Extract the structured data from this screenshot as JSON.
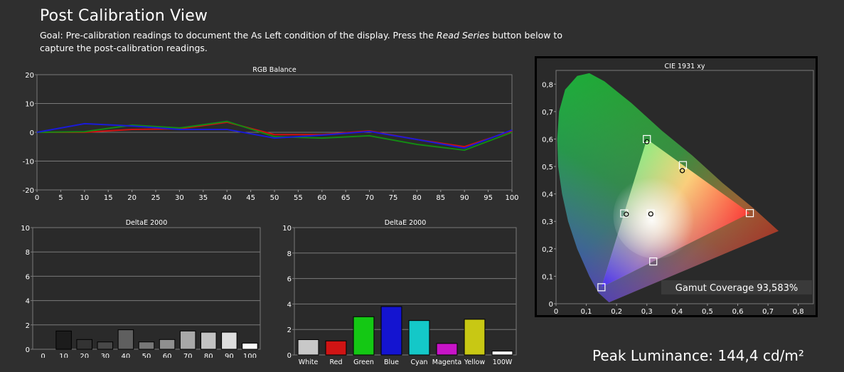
{
  "header": {
    "title": "Post Calibration View",
    "goal_prefix": "Goal: Pre-calibration readings to document the As Left condition of the display. Press the ",
    "goal_emphasis": "Read Series",
    "goal_suffix": " button below to capture the post-calibration readings."
  },
  "peak_luminance": "Peak Luminance: 144,4 cd/m²",
  "colors": {
    "background": "#2f2f2f",
    "plot_bg": "#2a2a2a",
    "red": "#d01010",
    "green": "#138a13",
    "blue": "#1a1ad8"
  },
  "chart_data": [
    {
      "id": "rgb_balance",
      "type": "line",
      "title": "RGB Balance",
      "x": [
        0,
        10,
        20,
        30,
        40,
        50,
        60,
        70,
        80,
        90,
        100
      ],
      "xticks": [
        "0",
        "5",
        "10",
        "15",
        "20",
        "25",
        "30",
        "35",
        "40",
        "45",
        "50",
        "55",
        "60",
        "65",
        "70",
        "75",
        "80",
        "85",
        "90",
        "95",
        "100"
      ],
      "yticks": [
        "20",
        "10",
        "0",
        "-10",
        "-20"
      ],
      "xlim": [
        0,
        100
      ],
      "ylim": [
        -20,
        20
      ],
      "grid": true,
      "series": [
        {
          "color": "#d01010",
          "values": [
            0,
            0,
            1.0,
            1.2,
            3.5,
            -0.8,
            -0.8,
            0.5,
            -2.5,
            -5.0,
            0.5
          ]
        },
        {
          "color": "#138a13",
          "values": [
            0,
            0.2,
            2.5,
            1.5,
            3.8,
            -1.5,
            -2.0,
            -1.2,
            -4.2,
            -6.2,
            0
          ]
        },
        {
          "color": "#1a1ad8",
          "values": [
            0,
            3.0,
            2.2,
            1.0,
            1.0,
            -2.0,
            -1.0,
            0.3,
            -2.5,
            -5.5,
            0.8
          ]
        }
      ]
    },
    {
      "id": "deltae_grayscale",
      "type": "bar",
      "title": "DeltaE 2000",
      "categories": [
        "0",
        "10",
        "20",
        "30",
        "40",
        "50",
        "60",
        "70",
        "80",
        "90",
        "100"
      ],
      "values": [
        0,
        1.5,
        0.8,
        0.6,
        1.6,
        0.6,
        0.8,
        1.5,
        1.4,
        1.4,
        0.5
      ],
      "colors": [
        "#000000",
        "#1c1c1c",
        "#333333",
        "#484848",
        "#5f5f5f",
        "#777777",
        "#8f8f8f",
        "#a8a8a8",
        "#c2c2c2",
        "#dedede",
        "#fbfbfb"
      ],
      "yticks": [
        "10",
        "8",
        "6",
        "4",
        "2",
        "0"
      ],
      "ylim": [
        0,
        10
      ]
    },
    {
      "id": "deltae_colors",
      "type": "bar",
      "title": "DeltaE 2000",
      "categories": [
        "White",
        "Red",
        "Green",
        "Blue",
        "Cyan",
        "Magenta",
        "Yellow",
        "100W"
      ],
      "values": [
        1.2,
        1.1,
        3.0,
        3.8,
        2.7,
        0.9,
        2.8,
        0.3
      ],
      "colors": [
        "#c8c8c8",
        "#d01414",
        "#14c814",
        "#1414d0",
        "#14c8c8",
        "#c814c8",
        "#c8c814",
        "#f5f5f5"
      ],
      "yticks": [
        "10",
        "8",
        "6",
        "4",
        "2",
        "0"
      ],
      "ylim": [
        0,
        10
      ]
    },
    {
      "id": "cie",
      "type": "scatter",
      "title": "CIE 1931 xy",
      "xticks": [
        "0",
        "0,1",
        "0,2",
        "0,3",
        "0,4",
        "0,5",
        "0,6",
        "0,7",
        "0,8"
      ],
      "yticks": [
        "0,8",
        "0,7",
        "0,6",
        "0,5",
        "0,4",
        "0,3",
        "0,2",
        "0,1",
        "0"
      ],
      "xlim": [
        0,
        0.85
      ],
      "ylim": [
        0,
        0.85
      ],
      "targets": [
        {
          "x": 0.64,
          "y": 0.33
        },
        {
          "x": 0.3,
          "y": 0.6
        },
        {
          "x": 0.15,
          "y": 0.06
        },
        {
          "x": 0.3127,
          "y": 0.329
        },
        {
          "x": 0.225,
          "y": 0.329
        },
        {
          "x": 0.321,
          "y": 0.154
        },
        {
          "x": 0.419,
          "y": 0.505
        }
      ],
      "measured": [
        {
          "x": 0.3,
          "y": 0.59
        },
        {
          "x": 0.232,
          "y": 0.326
        },
        {
          "x": 0.313,
          "y": 0.327
        },
        {
          "x": 0.417,
          "y": 0.485
        }
      ],
      "gamut_label": "Gamut Coverage 93,583%"
    }
  ]
}
